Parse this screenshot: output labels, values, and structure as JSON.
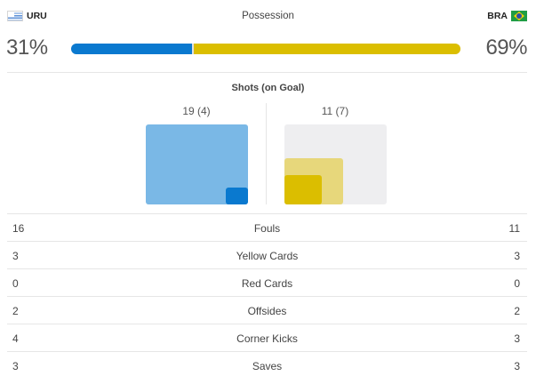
{
  "teams": {
    "home": {
      "abbr": "URU",
      "flag_icon": "uruguay-flag-icon"
    },
    "away": {
      "abbr": "BRA",
      "flag_icon": "brazil-flag-icon"
    }
  },
  "possession": {
    "title": "Possession",
    "home_label": "31%",
    "away_label": "69%",
    "home_value": 31,
    "away_value": 69,
    "home_color": "#0a79cf",
    "away_color": "#dbbe00"
  },
  "shots": {
    "title": "Shots (on Goal)",
    "home_label": "19 (4)",
    "away_label": "11 (7)",
    "home_total": 19,
    "home_on_goal": 4,
    "away_total": 11,
    "away_on_goal": 7
  },
  "stats": [
    {
      "home": "16",
      "label": "Fouls",
      "away": "11"
    },
    {
      "home": "3",
      "label": "Yellow Cards",
      "away": "3"
    },
    {
      "home": "0",
      "label": "Red Cards",
      "away": "0"
    },
    {
      "home": "2",
      "label": "Offsides",
      "away": "2"
    },
    {
      "home": "4",
      "label": "Corner Kicks",
      "away": "3"
    },
    {
      "home": "3",
      "label": "Saves",
      "away": "3"
    }
  ]
}
